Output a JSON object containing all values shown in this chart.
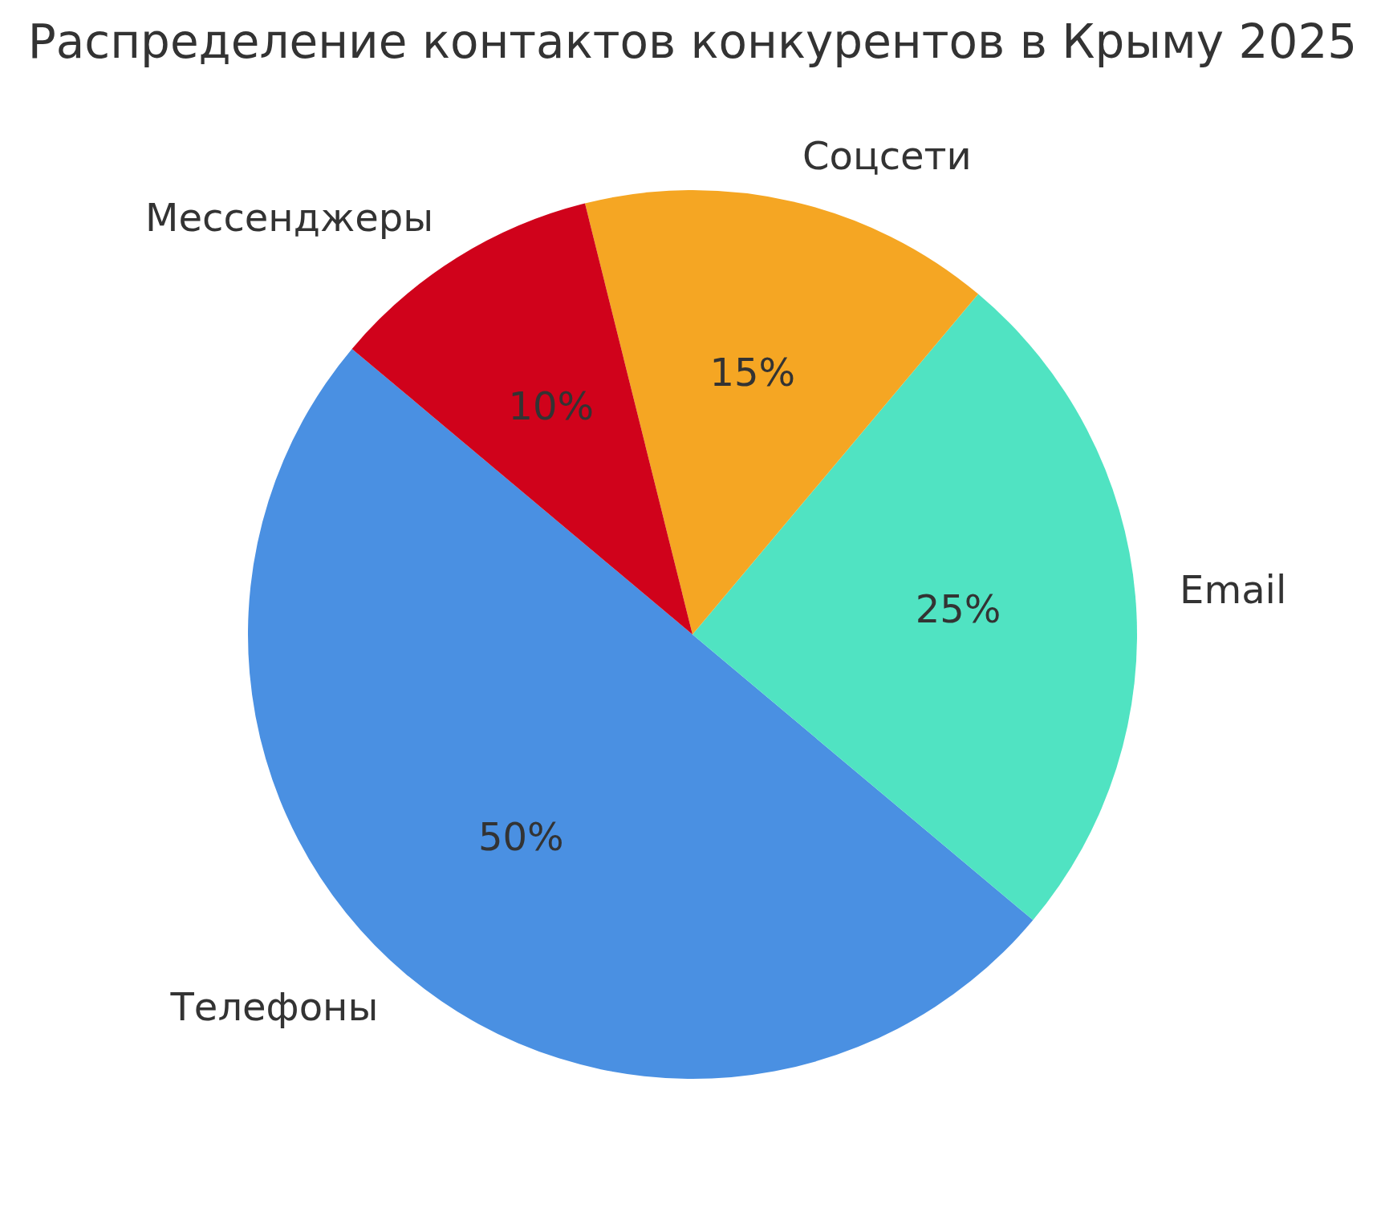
{
  "chart_data": {
    "type": "pie",
    "title": "Распределение контактов конкурентов в Крыму 2025",
    "categories": [
      "Телефоны",
      "Email",
      "Соцсети",
      "Мессенджеры"
    ],
    "values": [
      50,
      25,
      15,
      10
    ],
    "colors": [
      "#4a90e2",
      "#50e3c2",
      "#f5a623",
      "#d0021b"
    ],
    "value_labels": [
      "50%",
      "25%",
      "15%",
      "10%"
    ]
  }
}
